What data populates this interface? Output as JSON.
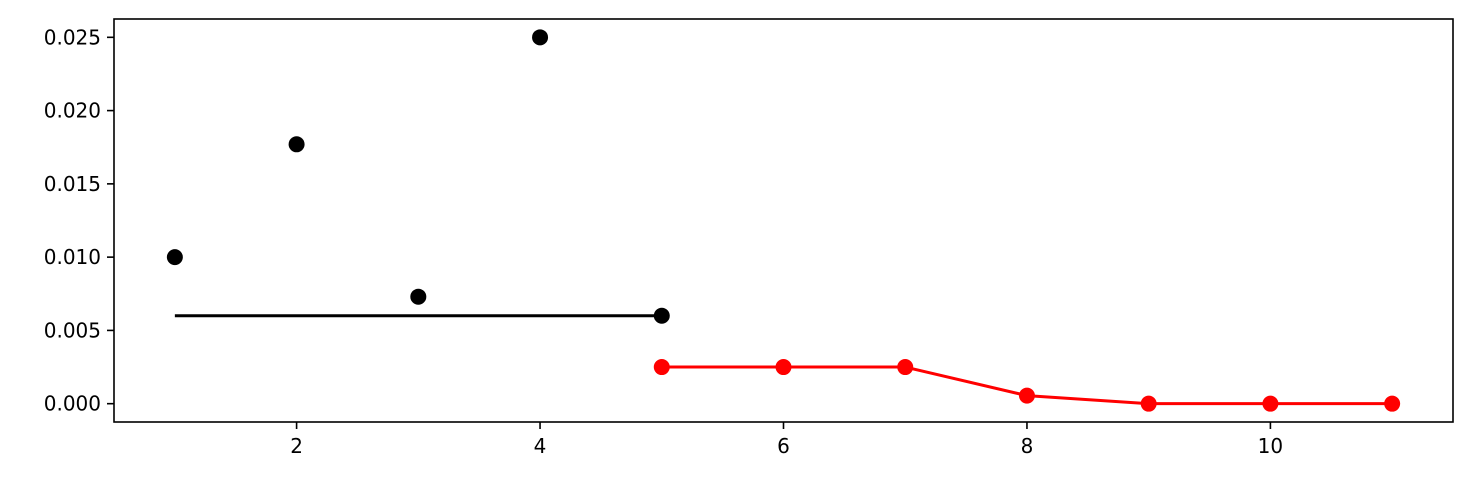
{
  "chart_data": {
    "type": "scatter",
    "title": "",
    "xlabel": "",
    "ylabel": "",
    "xlim": [
      0.5,
      11.5
    ],
    "ylim": [
      -0.00125,
      0.02625
    ],
    "xticks": [
      2,
      4,
      6,
      8,
      10
    ],
    "yticks": [
      0.0,
      0.005,
      0.01,
      0.015,
      0.02,
      0.025
    ],
    "xtick_labels": [
      "2",
      "4",
      "6",
      "8",
      "10"
    ],
    "ytick_labels": [
      "0.000",
      "0.005",
      "0.010",
      "0.015",
      "0.020",
      "0.025"
    ],
    "grid": false,
    "series": [
      {
        "kind": "markers",
        "color": "#000000",
        "x": [
          1,
          2,
          3,
          4,
          5
        ],
        "y": [
          0.01,
          0.0177,
          0.0073,
          0.025,
          0.006
        ]
      },
      {
        "kind": "line",
        "color": "#000000",
        "x": [
          1,
          5
        ],
        "y": [
          0.006,
          0.006
        ]
      },
      {
        "kind": "line+markers",
        "color": "#ff0000",
        "x": [
          5,
          6,
          7,
          8,
          9,
          10,
          11
        ],
        "y": [
          0.0025,
          0.0025,
          0.0025,
          0.00055,
          0.0,
          0.0,
          0.0
        ]
      }
    ]
  }
}
